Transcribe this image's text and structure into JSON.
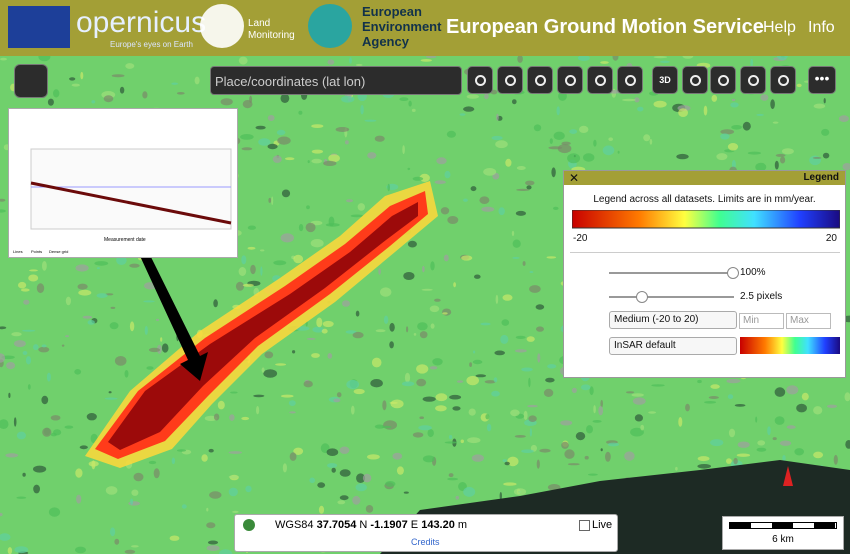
{
  "header": {
    "copernicus": "opernicus",
    "copernicus_tagline": "Europe's eyes on Earth",
    "land": [
      "Land",
      "Monitoring"
    ],
    "eea": [
      "European",
      "Environment",
      "Agency"
    ],
    "title": "European Ground Motion Service",
    "links": [
      "Help",
      "Info"
    ]
  },
  "toolbar": {
    "search_placeholder": "Place/coordinates (lat lon)",
    "button_3d": "3D"
  },
  "inset": {
    "x_label": "Measurement date",
    "options": [
      "Lines",
      "Points",
      "Dense grid"
    ]
  },
  "legend": {
    "title": "Legend",
    "description": "Legend across all datasets. Limits are in mm/year.",
    "min_label": "-20",
    "max_label": "20",
    "opacity": "100%",
    "point_size": "2.5 pixels",
    "range_select": "Medium (-20 to 20)",
    "min_placeholder": "Min",
    "max_placeholder": "Max",
    "palette_select": "InSAR default"
  },
  "coordinates": {
    "crs": "WGS84",
    "lat": "37.7054",
    "lat_dir": "N",
    "lon": "-1.1907",
    "lon_dir": "E",
    "height": "143.20",
    "height_unit": "m",
    "live": "Live",
    "credits": "Credits"
  },
  "scale": "6 km"
}
